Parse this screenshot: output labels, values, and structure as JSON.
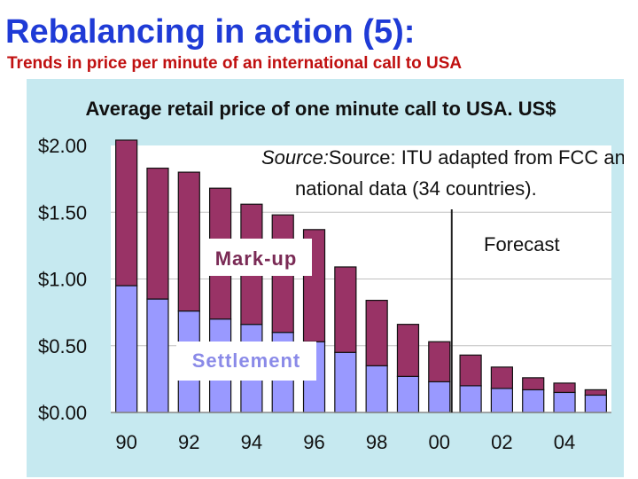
{
  "slide": {
    "title": "Rebalancing in action (5):",
    "subtitle": "Trends in price per minute of an international call to USA"
  },
  "colors": {
    "title": "#1f3bd6",
    "subtitle": "#c01010",
    "panel": "#c6e9f0",
    "plot": "#ffffff",
    "markup": "#993366",
    "settlement": "#9999ff",
    "grid": "#c0c0c0"
  },
  "chart_data": {
    "type": "bar",
    "stacked": true,
    "title": "Average retail price of one minute call to USA. US$",
    "categories": [
      "90",
      "91",
      "92",
      "93",
      "94",
      "95",
      "96",
      "97",
      "98",
      "99",
      "00",
      "01",
      "02",
      "03",
      "04",
      "05"
    ],
    "x_tick_labels": [
      "90",
      "",
      "92",
      "",
      "94",
      "",
      "96",
      "",
      "98",
      "",
      "00",
      "",
      "02",
      "",
      "04",
      ""
    ],
    "y_tick_labels": [
      "$2.00",
      "$1.50",
      "$1.00",
      "$0.50",
      "$0.00"
    ],
    "ylim": [
      0,
      2.0
    ],
    "grid": true,
    "series": [
      {
        "name": "Settlement",
        "values": [
          0.95,
          0.85,
          0.76,
          0.7,
          0.66,
          0.6,
          0.53,
          0.45,
          0.35,
          0.27,
          0.23,
          0.2,
          0.18,
          0.17,
          0.15,
          0.13
        ]
      },
      {
        "name": "Mark-up",
        "values": [
          1.09,
          0.98,
          1.04,
          0.98,
          0.9,
          0.88,
          0.84,
          0.64,
          0.49,
          0.39,
          0.3,
          0.23,
          0.16,
          0.09,
          0.07,
          0.04
        ]
      }
    ],
    "series_labels": {
      "markup": "Mark-up",
      "settlement": "Settlement"
    },
    "source_note_line1": "Source:  ITU adapted from FCC and",
    "source_note_line2": "national data (34 countries).",
    "forecast_label": "Forecast",
    "forecast_after_category": "00"
  }
}
